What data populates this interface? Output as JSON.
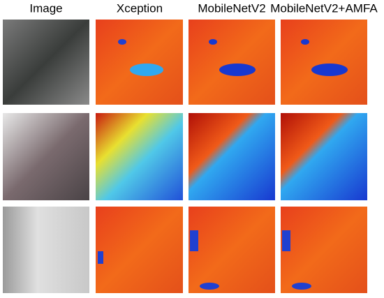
{
  "columns": [
    "Image",
    "Xception",
    "MobileNetV2",
    "MobileNetV2+AMFA"
  ]
}
